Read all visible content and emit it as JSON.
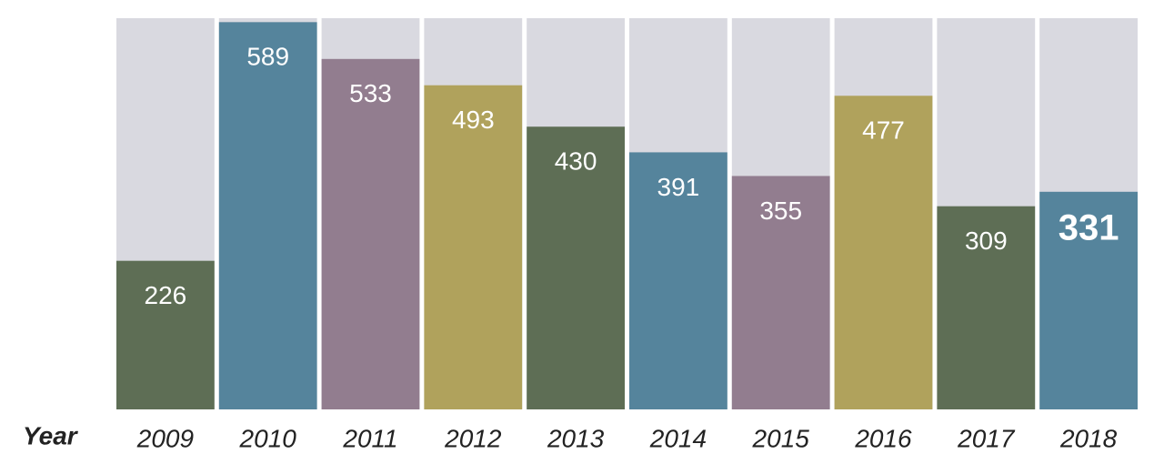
{
  "chart_data": {
    "type": "bar",
    "x_label": "Year",
    "categories": [
      "2009",
      "2010",
      "2011",
      "2012",
      "2013",
      "2014",
      "2015",
      "2016",
      "2017",
      "2018"
    ],
    "values": [
      226,
      589,
      533,
      493,
      430,
      391,
      355,
      477,
      309,
      331
    ],
    "colors": [
      "#5e6e55",
      "#55849c",
      "#927d8f",
      "#b0a25c",
      "#5e6e55",
      "#55849c",
      "#927d8f",
      "#b0a25c",
      "#5e6e55",
      "#55849c"
    ],
    "background_color": "#d9d9e0",
    "highlight_color": "#2e7bb4",
    "ylim": [
      0,
      595
    ]
  }
}
